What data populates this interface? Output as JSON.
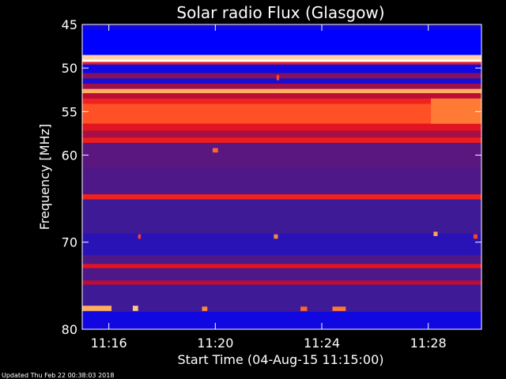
{
  "chart_data": {
    "type": "heatmap",
    "title": "Solar radio Flux (Glasgow)",
    "ylabel": "Frequency [MHz]",
    "xlabel": "Start Time (04-Aug-15 11:15:00)",
    "footer": "Updated Thu Feb 22 00:38:03 2018",
    "x_unit": "minutes after 11:15:00",
    "xlim": [
      0,
      15
    ],
    "ylim": [
      80,
      45
    ],
    "x_ticks": [
      {
        "value": 1,
        "label": "11:16"
      },
      {
        "value": 5,
        "label": "11:20"
      },
      {
        "value": 9,
        "label": "11:24"
      },
      {
        "value": 13,
        "label": "11:28"
      }
    ],
    "y_ticks": [
      {
        "value": 45,
        "label": "45"
      },
      {
        "value": 50,
        "label": "50"
      },
      {
        "value": 55,
        "label": "55"
      },
      {
        "value": 60,
        "label": "60"
      },
      {
        "value": 70,
        "label": "70"
      },
      {
        "value": 80,
        "label": "80"
      }
    ],
    "colormap": [
      "#0000ff",
      "#3a1a9a",
      "#7a1466",
      "#d40a22",
      "#ff2a1a",
      "#ffa040",
      "#ffffff"
    ],
    "background_level": 0.2,
    "bands": [
      {
        "f0": 45.0,
        "f1": 45.6,
        "level": 0.05
      },
      {
        "f0": 45.6,
        "f1": 48.5,
        "level": 0.0
      },
      {
        "f0": 48.5,
        "f1": 49.0,
        "level": 0.92
      },
      {
        "f0": 49.0,
        "f1": 49.3,
        "level": 1.0
      },
      {
        "f0": 49.3,
        "f1": 49.6,
        "level": 0.6
      },
      {
        "f0": 49.6,
        "f1": 50.6,
        "level": 0.05
      },
      {
        "f0": 50.6,
        "f1": 51.2,
        "level": 0.35
      },
      {
        "f0": 51.2,
        "f1": 51.8,
        "level": 0.08
      },
      {
        "f0": 51.8,
        "f1": 52.4,
        "level": 0.4
      },
      {
        "f0": 52.4,
        "f1": 52.9,
        "level": 0.86
      },
      {
        "f0": 52.9,
        "f1": 53.5,
        "level": 0.45
      },
      {
        "f0": 53.5,
        "f1": 54.1,
        "level": 0.62
      },
      {
        "f0": 54.1,
        "f1": 56.4,
        "level": 0.72
      },
      {
        "f0": 56.4,
        "f1": 57.2,
        "level": 0.55
      },
      {
        "f0": 57.2,
        "f1": 58.0,
        "level": 0.42
      },
      {
        "f0": 58.0,
        "f1": 58.6,
        "level": 0.6
      },
      {
        "f0": 58.6,
        "f1": 61.5,
        "level": 0.25
      },
      {
        "f0": 61.5,
        "f1": 64.5,
        "level": 0.22
      },
      {
        "f0": 64.5,
        "f1": 65.1,
        "level": 0.62
      },
      {
        "f0": 65.1,
        "f1": 69.0,
        "level": 0.18
      },
      {
        "f0": 69.0,
        "f1": 71.5,
        "level": 0.12
      },
      {
        "f0": 71.5,
        "f1": 72.5,
        "level": 0.22
      },
      {
        "f0": 72.5,
        "f1": 73.0,
        "level": 0.55
      },
      {
        "f0": 73.0,
        "f1": 74.4,
        "level": 0.22
      },
      {
        "f0": 74.4,
        "f1": 74.9,
        "level": 0.45
      },
      {
        "f0": 74.9,
        "f1": 78.0,
        "level": 0.18
      },
      {
        "f0": 78.0,
        "f1": 80.0,
        "level": 0.05
      }
    ],
    "bursts": [
      {
        "t0": 0.0,
        "t1": 1.1,
        "f0": 77.3,
        "f1": 77.9,
        "level": 0.86
      },
      {
        "t0": 1.9,
        "t1": 2.1,
        "f0": 77.3,
        "f1": 77.9,
        "level": 0.9
      },
      {
        "t0": 4.5,
        "t1": 4.7,
        "f0": 77.4,
        "f1": 77.9,
        "level": 0.8
      },
      {
        "t0": 8.2,
        "t1": 8.45,
        "f0": 77.4,
        "f1": 77.9,
        "level": 0.75
      },
      {
        "t0": 9.4,
        "t1": 9.9,
        "f0": 77.4,
        "f1": 77.9,
        "level": 0.78
      },
      {
        "t0": 7.2,
        "t1": 7.35,
        "f0": 69.1,
        "f1": 69.6,
        "level": 0.8
      },
      {
        "t0": 13.2,
        "t1": 13.35,
        "f0": 68.8,
        "f1": 69.3,
        "level": 0.85
      },
      {
        "t0": 14.7,
        "t1": 14.85,
        "f0": 69.1,
        "f1": 69.6,
        "level": 0.7
      },
      {
        "t0": 2.1,
        "t1": 2.2,
        "f0": 69.1,
        "f1": 69.6,
        "level": 0.7
      },
      {
        "t0": 4.9,
        "t1": 5.1,
        "f0": 59.2,
        "f1": 59.7,
        "level": 0.75
      },
      {
        "t0": 7.3,
        "t1": 7.4,
        "f0": 50.8,
        "f1": 51.4,
        "level": 0.7
      },
      {
        "t0": 13.1,
        "t1": 15.0,
        "f0": 53.5,
        "f1": 56.4,
        "level": 0.78
      }
    ]
  }
}
